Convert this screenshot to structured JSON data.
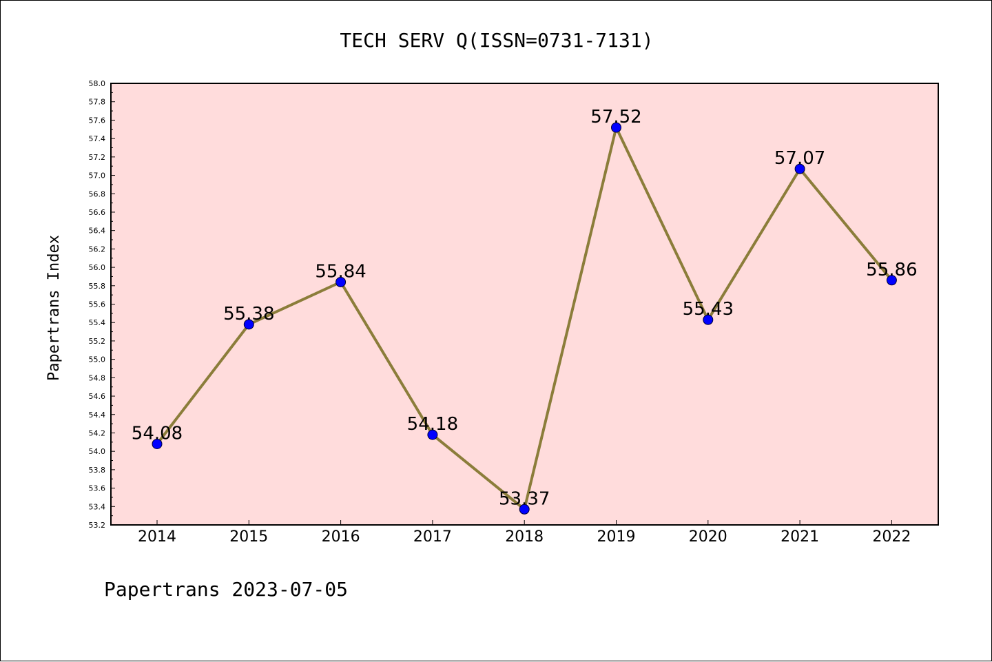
{
  "chart_data": {
    "type": "line",
    "title": "TECH SERV Q(ISSN=0731-7131)",
    "ylabel": "Papertrans Index",
    "xlabel": "",
    "footer": "Papertrans 2023-07-05",
    "x": [
      "2014",
      "2015",
      "2016",
      "2017",
      "2018",
      "2019",
      "2020",
      "2021",
      "2022"
    ],
    "series": [
      {
        "values": [
          54.08,
          55.38,
          55.84,
          54.18,
          53.37,
          57.52,
          55.43,
          57.07,
          55.86
        ],
        "labels": [
          "54.08",
          "55.38",
          "55.84",
          "54.18",
          "53.37",
          "57.52",
          "55.43",
          "57.07",
          "55.86"
        ],
        "line_color": "#8b7d3a",
        "marker_color": "#0000ff"
      }
    ],
    "ylim": [
      53.2,
      58.0
    ],
    "ytick_step": 0.2,
    "ytick_labels": [
      "53.2",
      "53.4",
      "53.6",
      "53.8",
      "54.0",
      "54.2",
      "54.4",
      "54.6",
      "54.8",
      "55.0",
      "55.2",
      "55.4",
      "55.6",
      "55.8",
      "56.0",
      "56.2",
      "56.4",
      "56.6",
      "56.8",
      "57.0",
      "57.2",
      "57.4",
      "57.6",
      "57.8",
      "58.0"
    ],
    "plot_background": "#ffdcdc",
    "grid": false,
    "legend": "none"
  }
}
